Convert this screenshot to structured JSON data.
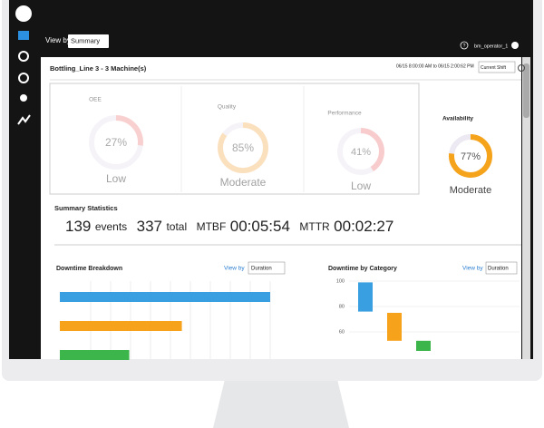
{
  "top_bar": {
    "view_by_label": "View by",
    "view_by_value": "Summary",
    "help": "?",
    "user": "bm_operator_1"
  },
  "header": {
    "title": "Bottling_Line 3 - 3 Machine(s)",
    "time_range": "06/15 8:00:00 AM to 06/15 2:00:62 PM",
    "shift": "Current Shift"
  },
  "gauges": [
    {
      "label": "OEE",
      "value": 27,
      "value_label": "27%",
      "status": "Low",
      "color": "#f4a3a3",
      "dimmed": true
    },
    {
      "label": "Quality",
      "value": 85,
      "value_label": "85%",
      "status": "Moderate",
      "color": "#f9c27f",
      "dimmed": true
    },
    {
      "label": "Performance",
      "value": 41,
      "value_label": "41%",
      "status": "Low",
      "color": "#f29a9a",
      "dimmed": true
    },
    {
      "label": "Availability",
      "value": 77,
      "value_label": "77%",
      "status": "Moderate",
      "color": "#f5a31a",
      "dimmed": false
    }
  ],
  "summary": {
    "title": "Summary Statistics",
    "events": 139,
    "events_label": "events",
    "total": 337,
    "total_label": "total",
    "mtbf_label": "MTBF",
    "mtbf": "00:05:54",
    "mttr_label": "MTTR",
    "mttr": "00:02:27"
  },
  "downtime_breakdown": {
    "title": "Downtime Breakdown",
    "view_by_label": "View by",
    "view_by_value": "Duration",
    "bars": [
      {
        "value": 100,
        "color": "#3a9fe0"
      },
      {
        "value": 58,
        "color": "#f7a21b"
      },
      {
        "value": 33,
        "color": "#3cb54a"
      }
    ]
  },
  "downtime_by_category": {
    "type": "bar",
    "title": "Downtime by Category",
    "view_by_label": "View by",
    "view_by_value": "Duration",
    "ylim": [
      40,
      100
    ],
    "yticks": [
      100,
      80,
      60
    ],
    "bars": [
      {
        "start": 99,
        "end": 76,
        "color": "#3a9fe0"
      },
      {
        "start": 75,
        "end": 53,
        "color": "#f7a21b"
      },
      {
        "start": 53,
        "end": 45,
        "color": "#3cb54a"
      }
    ]
  }
}
